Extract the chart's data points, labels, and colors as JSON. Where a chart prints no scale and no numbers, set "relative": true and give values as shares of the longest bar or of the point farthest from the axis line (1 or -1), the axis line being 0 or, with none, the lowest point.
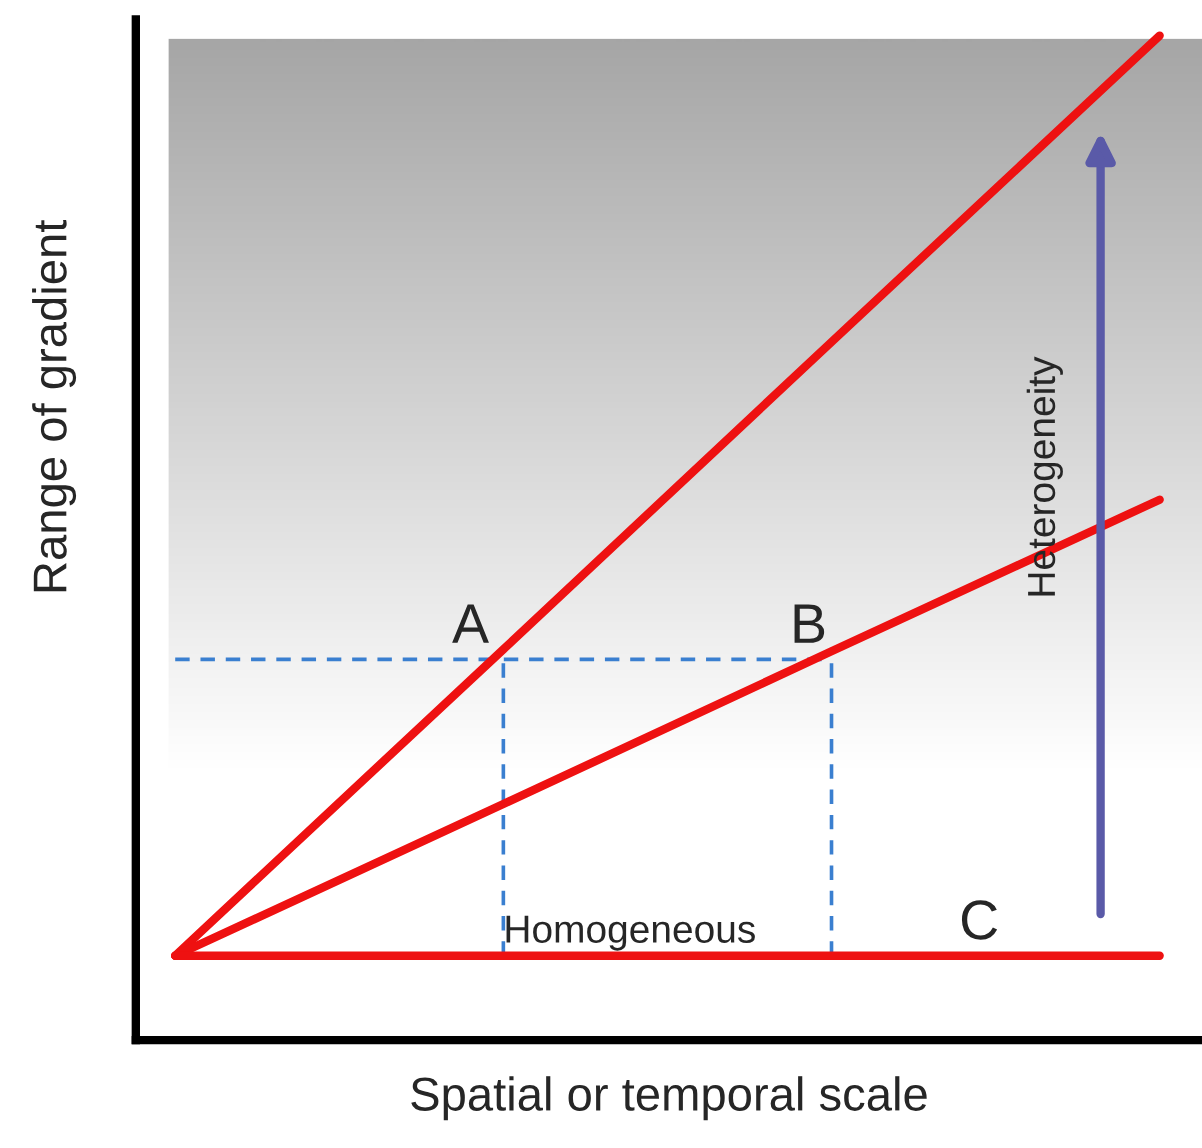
{
  "chart_data": {
    "type": "line",
    "relative": true,
    "xlabel": "Spatial or temporal scale",
    "ylabel": "Range of gradient",
    "categories": [
      null,
      null,
      null,
      null
    ],
    "series": [
      {
        "color": "#ee1111",
        "values": [
          0.084,
          0.389,
          0.695,
          1.0
        ]
      },
      {
        "color": "#ee1111",
        "values": [
          0.084,
          0.235,
          0.387,
          0.538
        ]
      },
      {
        "color": "#ee1111",
        "values": [
          0.084,
          0.084,
          0.084,
          0.084
        ]
      },
      {
        "color": "#3a7fd0",
        "line_style": "dashed",
        "values": [
          0.379,
          0.379,
          0.379,
          null
        ]
      }
    ],
    "annotations": [
      "A",
      "B",
      "C",
      "Homogeneous",
      "Heterogeneity"
    ]
  }
}
